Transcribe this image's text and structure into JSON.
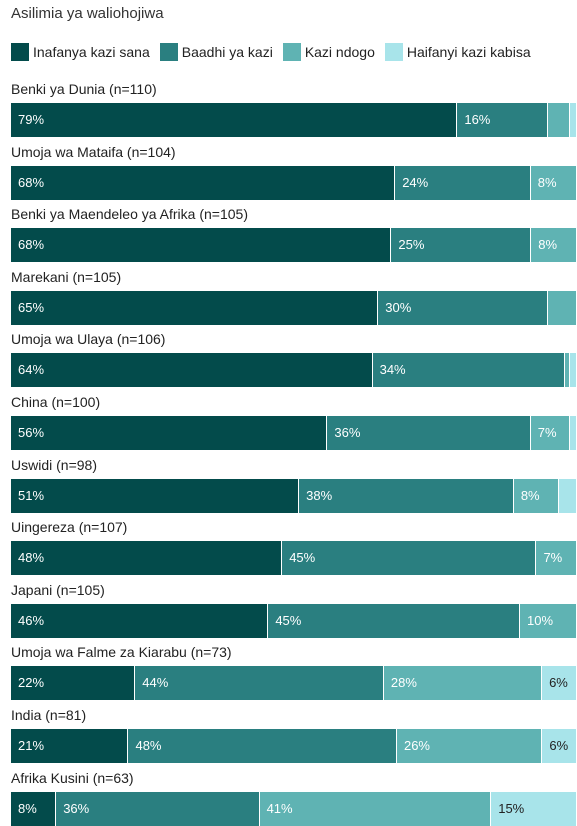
{
  "chart_data": {
    "type": "bar",
    "orientation": "horizontal",
    "stacked": true,
    "title": "Asilimia ya waliohojiwa",
    "legend_position": "top",
    "xlim": [
      0,
      100
    ],
    "series": [
      {
        "name": "Inafanya kazi sana",
        "color": "#034b4b"
      },
      {
        "name": "Baadhi ya kazi",
        "color": "#2a7f80"
      },
      {
        "name": "Kazi ndogo",
        "color": "#5fb3b3"
      },
      {
        "name": "Haifanyi kazi kabisa",
        "color": "#a8e4ea"
      }
    ],
    "rows": [
      {
        "category": "Benki ya Dunia (n=110)",
        "values": [
          79,
          16,
          4,
          1
        ],
        "labels": [
          "79%",
          "16%",
          "",
          ""
        ]
      },
      {
        "category": "Umoja wa Mataifa (n=104)",
        "values": [
          68,
          24,
          8,
          0
        ],
        "labels": [
          "68%",
          "24%",
          "8%",
          ""
        ]
      },
      {
        "category": "Benki ya Maendeleo ya Afrika (n=105)",
        "values": [
          68,
          25,
          8,
          0
        ],
        "labels": [
          "68%",
          "25%",
          "8%",
          ""
        ]
      },
      {
        "category": "Marekani (n=105)",
        "values": [
          65,
          30,
          5,
          0
        ],
        "labels": [
          "65%",
          "30%",
          "",
          ""
        ]
      },
      {
        "category": "Umoja wa Ulaya (n=106)",
        "values": [
          64,
          34,
          1,
          1
        ],
        "labels": [
          "64%",
          "34%",
          "",
          ""
        ]
      },
      {
        "category": "China (n=100)",
        "values": [
          56,
          36,
          7,
          1
        ],
        "labels": [
          "56%",
          "36%",
          "7%",
          ""
        ]
      },
      {
        "category": "Uswidi (n=98)",
        "values": [
          51,
          38,
          8,
          3
        ],
        "labels": [
          "51%",
          "38%",
          "8%",
          ""
        ]
      },
      {
        "category": "Uingereza (n=107)",
        "values": [
          48,
          45,
          7,
          0
        ],
        "labels": [
          "48%",
          "45%",
          "7%",
          ""
        ]
      },
      {
        "category": "Japani (n=105)",
        "values": [
          46,
          45,
          10,
          0
        ],
        "labels": [
          "46%",
          "45%",
          "10%",
          ""
        ]
      },
      {
        "category": "Umoja wa Falme za Kiarabu (n=73)",
        "values": [
          22,
          44,
          28,
          6
        ],
        "labels": [
          "22%",
          "44%",
          "28%",
          "6%"
        ]
      },
      {
        "category": "India (n=81)",
        "values": [
          21,
          48,
          26,
          6
        ],
        "labels": [
          "21%",
          "48%",
          "26%",
          "6%"
        ]
      },
      {
        "category": "Afrika Kusini (n=63)",
        "values": [
          8,
          36,
          41,
          15
        ],
        "labels": [
          "8%",
          "36%",
          "41%",
          "15%"
        ]
      }
    ]
  }
}
